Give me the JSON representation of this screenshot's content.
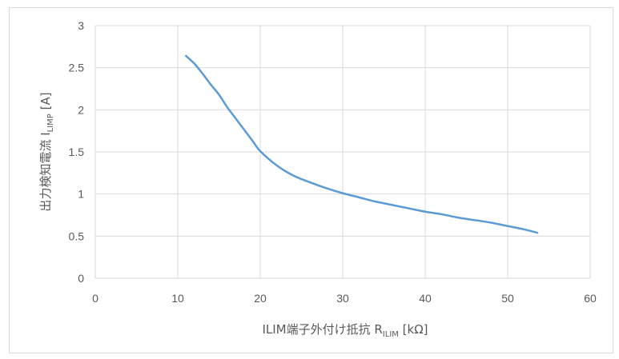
{
  "chart_data": {
    "type": "line",
    "xlabel": {
      "main": "ILIM端子外付け抵抗 R",
      "sub": "ILIM",
      "suffix": " [kΩ]"
    },
    "ylabel": {
      "main": "出力検知電流 I",
      "sub": "LIMP",
      "suffix": " [A]"
    },
    "xlim": [
      0,
      60
    ],
    "ylim": [
      0,
      3
    ],
    "x_ticks": [
      0,
      10,
      20,
      30,
      40,
      50,
      60
    ],
    "y_ticks": [
      0,
      0.5,
      1,
      1.5,
      2,
      2.5,
      3
    ],
    "x_tick_labels": [
      "0",
      "10",
      "20",
      "30",
      "40",
      "50",
      "60"
    ],
    "y_tick_labels": [
      "0",
      "0.5",
      "1",
      "1.5",
      "2",
      "2.5",
      "3"
    ],
    "grid": true,
    "legend": "none",
    "series": [
      {
        "color": "#5b9bd5",
        "x": [
          11,
          12,
          13,
          14,
          15,
          16,
          17,
          18,
          19,
          20,
          22,
          24,
          26,
          28,
          30,
          32,
          34,
          36,
          38,
          40,
          42,
          44,
          46,
          48,
          50,
          52,
          53.6
        ],
        "y": [
          2.64,
          2.55,
          2.43,
          2.3,
          2.18,
          2.03,
          1.9,
          1.77,
          1.64,
          1.51,
          1.34,
          1.22,
          1.14,
          1.07,
          1.01,
          0.96,
          0.91,
          0.87,
          0.83,
          0.79,
          0.76,
          0.72,
          0.69,
          0.66,
          0.62,
          0.58,
          0.54
        ]
      }
    ]
  }
}
